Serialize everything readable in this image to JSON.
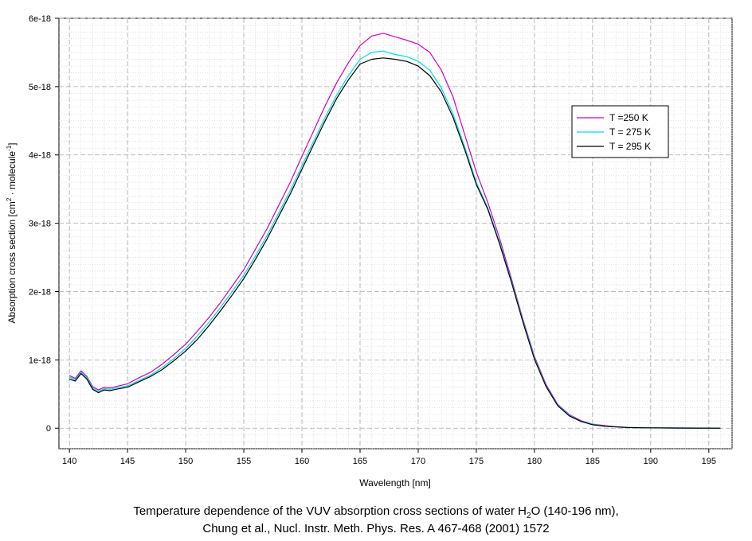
{
  "chart_data": {
    "type": "line",
    "xlabel": "Wavelength [nm]",
    "ylabel_parts": [
      "Absorption cross section [cm",
      "2",
      " · molecule",
      "-1",
      "]"
    ],
    "xlim": [
      139.1,
      197
    ],
    "ylim": [
      -0.3,
      6
    ],
    "x_ticks": [
      140,
      145,
      150,
      155,
      160,
      165,
      170,
      175,
      180,
      185,
      190,
      195
    ],
    "y_ticks": [
      0,
      1,
      2,
      3,
      4,
      5,
      6
    ],
    "y_tick_labels": [
      "0",
      "1e-18",
      "2e-18",
      "3e-18",
      "4e-18",
      "5e-18",
      "6e-18"
    ],
    "y_unit_note": "values in 1e-18 cm^2",
    "grid": true,
    "legend_position": "right",
    "series": [
      {
        "name": "T =250 K",
        "color": "#cc00cc",
        "x": [
          140,
          140.5,
          141,
          141.5,
          142,
          142.5,
          143,
          143.5,
          144,
          145,
          146,
          147,
          148,
          149,
          150,
          151,
          152,
          153,
          154,
          155,
          156,
          157,
          158,
          159,
          160,
          161,
          162,
          163,
          164,
          165,
          166,
          167,
          168,
          169,
          170,
          171,
          172,
          173,
          174,
          175,
          176,
          177,
          178,
          179,
          180,
          181,
          182,
          183,
          184,
          185,
          186,
          187,
          188,
          190,
          192,
          194,
          196
        ],
        "values": [
          0.77,
          0.73,
          0.84,
          0.76,
          0.61,
          0.56,
          0.6,
          0.59,
          0.61,
          0.65,
          0.74,
          0.82,
          0.94,
          1.08,
          1.23,
          1.42,
          1.62,
          1.84,
          2.08,
          2.32,
          2.62,
          2.92,
          3.26,
          3.6,
          3.98,
          4.35,
          4.72,
          5.06,
          5.35,
          5.6,
          5.74,
          5.78,
          5.73,
          5.68,
          5.62,
          5.5,
          5.24,
          4.85,
          4.3,
          3.75,
          3.3,
          2.78,
          2.2,
          1.6,
          1.05,
          0.64,
          0.35,
          0.2,
          0.11,
          0.06,
          0.04,
          0.02,
          0.01,
          0.005,
          0.003,
          0.002,
          0.001
        ]
      },
      {
        "name": "T = 275 K",
        "color": "#00dddd",
        "x": [
          140,
          140.5,
          141,
          141.5,
          142,
          142.5,
          143,
          143.5,
          144,
          145,
          146,
          147,
          148,
          149,
          150,
          151,
          152,
          153,
          154,
          155,
          156,
          157,
          158,
          159,
          160,
          161,
          162,
          163,
          164,
          165,
          166,
          167,
          168,
          169,
          170,
          171,
          172,
          173,
          174,
          175,
          176,
          177,
          178,
          179,
          180,
          181,
          182,
          183,
          184,
          185,
          186,
          187,
          188,
          190,
          192,
          194,
          196
        ],
        "values": [
          0.75,
          0.71,
          0.82,
          0.74,
          0.59,
          0.54,
          0.58,
          0.57,
          0.59,
          0.62,
          0.7,
          0.78,
          0.89,
          1.02,
          1.17,
          1.35,
          1.55,
          1.77,
          2.0,
          2.24,
          2.52,
          2.82,
          3.15,
          3.48,
          3.84,
          4.2,
          4.55,
          4.88,
          5.16,
          5.4,
          5.5,
          5.52,
          5.47,
          5.44,
          5.37,
          5.24,
          4.98,
          4.6,
          4.12,
          3.6,
          3.22,
          2.72,
          2.17,
          1.58,
          1.03,
          0.62,
          0.34,
          0.19,
          0.1,
          0.06,
          0.03,
          0.02,
          0.01,
          0.005,
          0.003,
          0.002,
          0.001
        ]
      },
      {
        "name": "T = 295 K",
        "color": "#000000",
        "x": [
          140,
          140.5,
          141,
          141.5,
          142,
          142.5,
          143,
          143.5,
          144,
          145,
          146,
          147,
          148,
          149,
          150,
          151,
          152,
          153,
          154,
          155,
          156,
          157,
          158,
          159,
          160,
          161,
          162,
          163,
          164,
          165,
          166,
          167,
          168,
          169,
          170,
          171,
          172,
          173,
          174,
          175,
          176,
          177,
          178,
          179,
          180,
          181,
          182,
          183,
          184,
          185,
          186,
          187,
          188,
          190,
          192,
          194,
          196
        ],
        "values": [
          0.72,
          0.69,
          0.8,
          0.72,
          0.57,
          0.52,
          0.56,
          0.55,
          0.57,
          0.6,
          0.68,
          0.76,
          0.86,
          0.99,
          1.13,
          1.3,
          1.5,
          1.72,
          1.95,
          2.19,
          2.47,
          2.77,
          3.1,
          3.43,
          3.79,
          4.15,
          4.5,
          4.83,
          5.1,
          5.33,
          5.4,
          5.42,
          5.4,
          5.37,
          5.3,
          5.16,
          4.92,
          4.55,
          4.08,
          3.57,
          3.2,
          2.7,
          2.15,
          1.56,
          1.01,
          0.61,
          0.33,
          0.18,
          0.1,
          0.05,
          0.03,
          0.02,
          0.01,
          0.005,
          0.003,
          0.002,
          0.001
        ]
      }
    ]
  },
  "caption": {
    "line1_pre": "Temperature dependence of the VUV absorption cross sections of water H",
    "line1_sub": "2",
    "line1_post": "O (140-196 nm),",
    "line2": "Chung et al., Nucl. Instr. Meth. Phys. Res. A 467-468 (2001) 1572"
  }
}
